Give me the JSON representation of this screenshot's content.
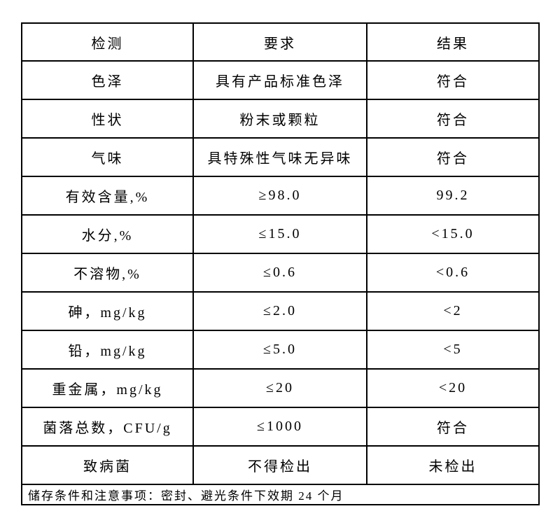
{
  "colors": {
    "background": "#ffffff",
    "border": "#000000",
    "text": "#000000"
  },
  "table": {
    "headers": [
      "检测",
      "要求",
      "结果"
    ],
    "rows": [
      {
        "item": "色泽",
        "requirement": "具有产品标准色泽",
        "result": "符合"
      },
      {
        "item": "性状",
        "requirement": "粉末或颗粒",
        "result": "符合"
      },
      {
        "item": "气味",
        "requirement": "具特殊性气味无异味",
        "result": "符合"
      },
      {
        "item": "有效含量,%",
        "requirement": "≥98.0",
        "result": "99.2"
      },
      {
        "item": "水分,%",
        "requirement": "≤15.0",
        "result": "<15.0"
      },
      {
        "item": "不溶物,%",
        "requirement": "≤0.6",
        "result": "<0.6"
      },
      {
        "item": "砷，mg/kg",
        "requirement": "≤2.0",
        "result": "<2"
      },
      {
        "item": "铅，mg/kg",
        "requirement": "≤5.0",
        "result": "<5"
      },
      {
        "item": "重金属，mg/kg",
        "requirement": "≤20",
        "result": "<20"
      },
      {
        "item": "菌落总数，CFU/g",
        "requirement": "≤1000",
        "result": "符合"
      },
      {
        "item": "致病菌",
        "requirement": "不得检出",
        "result": "未检出"
      }
    ],
    "footer_note": "储存条件和注意事项：密封、避光条件下效期 24 个月"
  }
}
